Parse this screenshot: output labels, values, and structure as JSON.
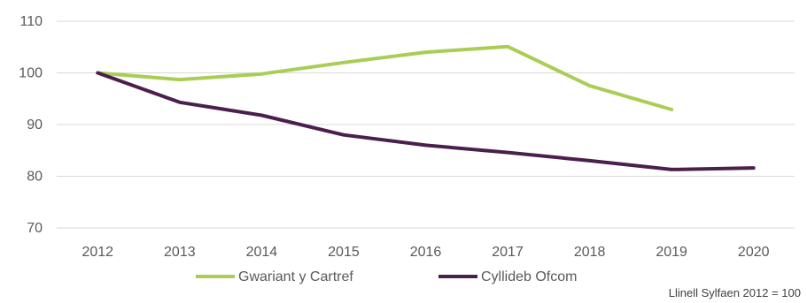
{
  "chart_data": {
    "type": "line",
    "title": "",
    "xlabel": "",
    "ylabel": "",
    "categories": [
      "2012",
      "2013",
      "2014",
      "2015",
      "2016",
      "2017",
      "2018",
      "2019",
      "2020"
    ],
    "ylim": [
      70,
      110
    ],
    "yticks": [
      70,
      80,
      90,
      100,
      110
    ],
    "grid": true,
    "legend_position": "bottom",
    "series": [
      {
        "name": "Gwariant y Cartref",
        "color": "#a9cd55",
        "values": [
          100,
          98.7,
          99.8,
          102,
          104,
          105.1,
          97.5,
          92.9,
          null
        ]
      },
      {
        "name": "Cyllideb Ofcom",
        "color": "#4a1f4d",
        "values": [
          100,
          94.3,
          91.8,
          88,
          86,
          84.6,
          83,
          81.3,
          81.6
        ]
      }
    ],
    "note": "Llinell Sylfaen 2012 = 100"
  }
}
